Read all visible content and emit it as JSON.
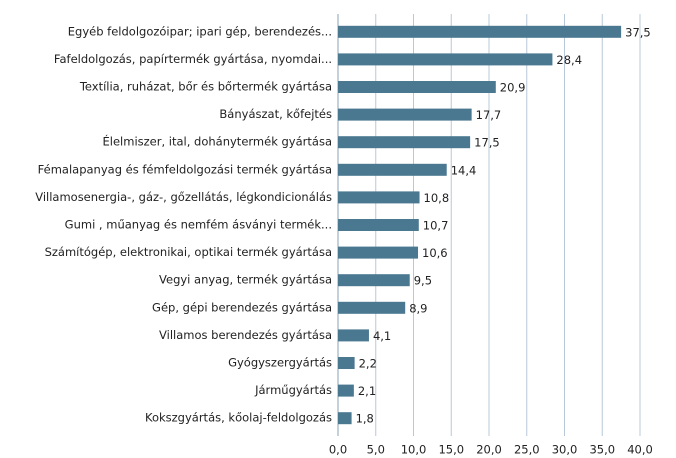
{
  "chart_data": {
    "type": "barh",
    "categories": [
      "Egyéb feldolgozóipar; ipari gép, berendezés...",
      "Fafeldolgozás, papírtermék gyártása, nyomdai...",
      "Textília, ruházat, bőr és bőrtermék gyártása",
      "Bányászat, kőfejtés",
      "Élelmiszer, ital, dohánytermék gyártása",
      "Fémalapanyag és fémfeldolgozási termék gyártása",
      "Villamosenergia-, gáz-, gőzellátás, légkondicionálás",
      "Gumi , műanyag és nemfém ásványi termék...",
      "Számítógép, elektronikai, optikai termék gyártása",
      "Vegyi anyag, termék gyártása",
      "Gép, gépi berendezés gyártása",
      "Villamos berendezés gyártása",
      "Gyógyszergyártás",
      "Járműgyártás",
      "Kokszgyártás, kőolaj-feldolgozás"
    ],
    "values": [
      37.5,
      28.4,
      20.9,
      17.7,
      17.5,
      14.4,
      10.8,
      10.7,
      10.6,
      9.5,
      8.9,
      4.1,
      2.2,
      2.1,
      1.8
    ],
    "value_labels": [
      "37,5",
      "28,4",
      "20,9",
      "17,7",
      "17,5",
      "14,4",
      "10,8",
      "10,7",
      "10,6",
      "9,5",
      "8,9",
      "4,1",
      "2,2",
      "2,1",
      "1,8"
    ],
    "color": "#4a7891",
    "xlim": [
      0,
      40
    ],
    "xticks": [
      {
        "value": 0,
        "label": "0,0"
      },
      {
        "value": 5,
        "label": "5,0"
      },
      {
        "value": 10,
        "label": "10,0"
      },
      {
        "value": 15,
        "label": "15,0"
      },
      {
        "value": 20,
        "label": "20,0"
      },
      {
        "value": 25,
        "label": "25,0"
      },
      {
        "value": 30,
        "label": "30,0"
      },
      {
        "value": 35,
        "label": "35,0"
      },
      {
        "value": 40,
        "label": "40,0"
      }
    ],
    "grid": true
  }
}
